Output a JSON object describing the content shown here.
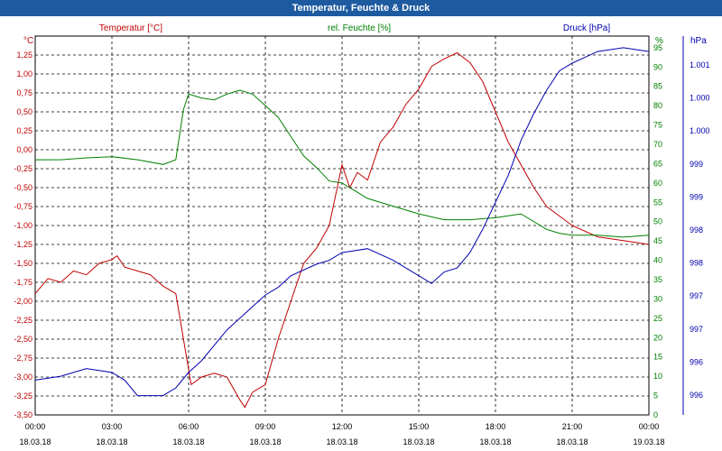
{
  "window": {
    "title": "Temperatur, Feuchte & Druck"
  },
  "colors": {
    "temperature": "#c00000",
    "humidity": "#008000",
    "pressure": "#0000b0",
    "grid": "#000000",
    "title_bg": "#1d5aa0"
  },
  "chart_data": {
    "type": "line",
    "grid": true,
    "legend": "top",
    "x_ticks": [
      {
        "time": "00:00",
        "date": "18.03.18"
      },
      {
        "time": "03:00",
        "date": "18.03.18"
      },
      {
        "time": "06:00",
        "date": "18.03.18"
      },
      {
        "time": "09:00",
        "date": "18.03.18"
      },
      {
        "time": "12:00",
        "date": "18.03.18"
      },
      {
        "time": "15:00",
        "date": "18.03.18"
      },
      {
        "time": "18:00",
        "date": "18.03.18"
      },
      {
        "time": "21:00",
        "date": "18.03.18"
      },
      {
        "time": "00:00",
        "date": "19.03.18"
      }
    ],
    "xlim_hours": [
      0,
      24
    ],
    "axes": {
      "left": {
        "unit": "°C",
        "ylim": [
          -3.5,
          1.5
        ],
        "ticks": [
          "1,25",
          "1,00",
          "0,75",
          "0,50",
          "0,25",
          "0,00",
          "-0,25",
          "-0,50",
          "-0,75",
          "-1,00",
          "-1,25",
          "-1,50",
          "-1,75",
          "-2,00",
          "-2,25",
          "-2,50",
          "-2,75",
          "-3,00",
          "-3,25",
          "-3,50"
        ]
      },
      "right1": {
        "unit": "%",
        "ylim": [
          0,
          98
        ],
        "ticks": [
          "95",
          "90",
          "85",
          "80",
          "75",
          "70",
          "65",
          "60",
          "55",
          "50",
          "45",
          "40",
          "35",
          "30",
          "25",
          "20",
          "15",
          "10",
          "5",
          "0"
        ]
      },
      "right2": {
        "unit": "hPa",
        "ticks": [
          "1.001",
          "1.000",
          "1.000",
          "999",
          "999",
          "998",
          "998",
          "997",
          "997",
          "996",
          "996"
        ]
      }
    },
    "series": [
      {
        "name": "Temperatur [°C]",
        "axis": "left",
        "points": [
          [
            0,
            -1.9
          ],
          [
            0.5,
            -1.7
          ],
          [
            1,
            -1.75
          ],
          [
            1.5,
            -1.6
          ],
          [
            2,
            -1.65
          ],
          [
            2.5,
            -1.5
          ],
          [
            3,
            -1.45
          ],
          [
            3.2,
            -1.4
          ],
          [
            3.5,
            -1.55
          ],
          [
            4,
            -1.6
          ],
          [
            4.5,
            -1.65
          ],
          [
            5,
            -1.8
          ],
          [
            5.5,
            -1.9
          ],
          [
            5.8,
            -2.5
          ],
          [
            6.1,
            -3.1
          ],
          [
            6.5,
            -3.0
          ],
          [
            7,
            -2.95
          ],
          [
            7.5,
            -3.0
          ],
          [
            8,
            -3.3
          ],
          [
            8.2,
            -3.4
          ],
          [
            8.5,
            -3.2
          ],
          [
            9,
            -3.1
          ],
          [
            9.5,
            -2.5
          ],
          [
            10,
            -2.0
          ],
          [
            10.5,
            -1.5
          ],
          [
            11,
            -1.3
          ],
          [
            11.5,
            -1.0
          ],
          [
            12,
            -0.2
          ],
          [
            12.3,
            -0.5
          ],
          [
            12.6,
            -0.3
          ],
          [
            13,
            -0.4
          ],
          [
            13.5,
            0.1
          ],
          [
            14,
            0.3
          ],
          [
            14.5,
            0.6
          ],
          [
            15,
            0.8
          ],
          [
            15.5,
            1.1
          ],
          [
            16,
            1.2
          ],
          [
            16.5,
            1.28
          ],
          [
            17,
            1.15
          ],
          [
            17.5,
            0.9
          ],
          [
            18,
            0.5
          ],
          [
            18.5,
            0.1
          ],
          [
            19,
            -0.2
          ],
          [
            19.5,
            -0.5
          ],
          [
            20,
            -0.75
          ],
          [
            21,
            -1.0
          ],
          [
            22,
            -1.15
          ],
          [
            23,
            -1.2
          ],
          [
            24,
            -1.25
          ]
        ]
      },
      {
        "name": "rel. Feuchte [%]",
        "axis": "right1",
        "points": [
          [
            0,
            66
          ],
          [
            1,
            66
          ],
          [
            2,
            66.5
          ],
          [
            3,
            66.8
          ],
          [
            4,
            66
          ],
          [
            5,
            64.8
          ],
          [
            5.5,
            66
          ],
          [
            5.8,
            79
          ],
          [
            6,
            83
          ],
          [
            6.5,
            82
          ],
          [
            7,
            81.5
          ],
          [
            7.5,
            83
          ],
          [
            8,
            84
          ],
          [
            8.5,
            83
          ],
          [
            9,
            80
          ],
          [
            9.5,
            77
          ],
          [
            10,
            72
          ],
          [
            10.5,
            67
          ],
          [
            11,
            64
          ],
          [
            11.5,
            60.5
          ],
          [
            12,
            60
          ],
          [
            12.5,
            58
          ],
          [
            13,
            56
          ],
          [
            14,
            54
          ],
          [
            15,
            52
          ],
          [
            16,
            50.5
          ],
          [
            17,
            50.5
          ],
          [
            18,
            51
          ],
          [
            19,
            52
          ],
          [
            20,
            48
          ],
          [
            20.5,
            47
          ],
          [
            21,
            46.5
          ],
          [
            22,
            46.5
          ],
          [
            23,
            46
          ],
          [
            24,
            46.5
          ]
        ]
      },
      {
        "name": "Druck [hPa]",
        "axis": "right2",
        "points": [
          [
            0,
            9
          ],
          [
            1,
            10
          ],
          [
            2,
            12
          ],
          [
            3,
            11
          ],
          [
            3.5,
            9
          ],
          [
            4,
            5
          ],
          [
            5,
            5
          ],
          [
            5.5,
            7
          ],
          [
            6,
            11
          ],
          [
            6.5,
            14
          ],
          [
            7,
            18
          ],
          [
            7.5,
            22
          ],
          [
            8,
            25
          ],
          [
            8.5,
            28
          ],
          [
            9,
            31
          ],
          [
            9.5,
            33
          ],
          [
            10,
            36
          ],
          [
            11,
            39
          ],
          [
            11.5,
            40
          ],
          [
            12,
            42
          ],
          [
            13,
            43
          ],
          [
            14,
            40
          ],
          [
            15,
            36
          ],
          [
            15.5,
            34
          ],
          [
            16,
            37
          ],
          [
            16.5,
            38
          ],
          [
            17,
            42
          ],
          [
            17.5,
            48
          ],
          [
            18,
            55
          ],
          [
            18.5,
            62
          ],
          [
            19,
            71
          ],
          [
            19.5,
            78
          ],
          [
            20,
            84
          ],
          [
            20.5,
            89
          ],
          [
            21,
            91
          ],
          [
            22,
            94
          ],
          [
            23,
            95
          ],
          [
            24,
            94
          ]
        ]
      }
    ]
  }
}
